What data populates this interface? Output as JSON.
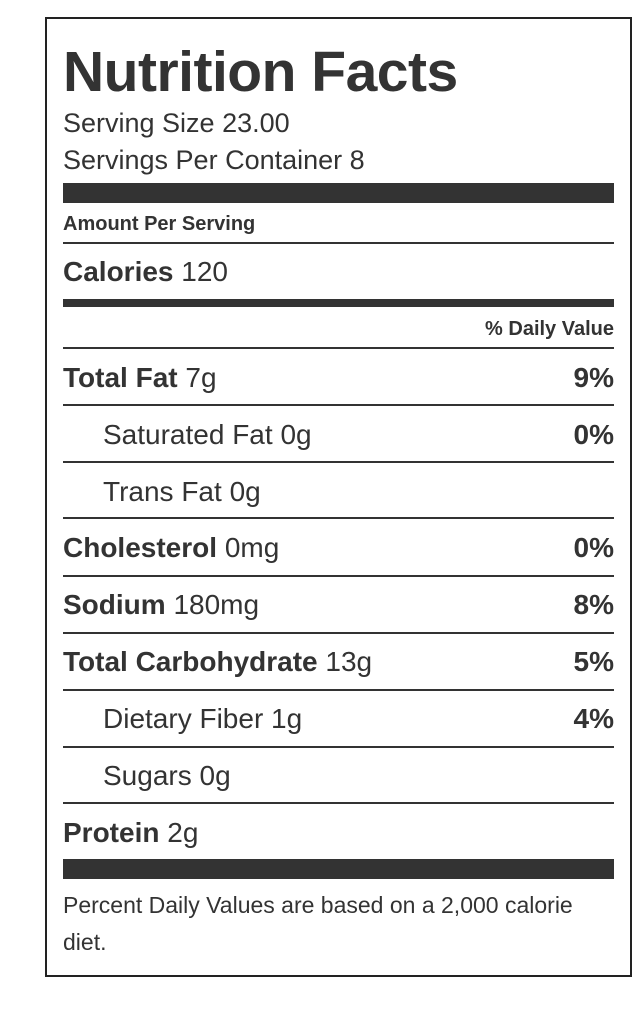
{
  "label": {
    "title": "Nutrition Facts",
    "serving_size": "Serving Size 23.00",
    "servings_per_container": "Servings Per Container 8",
    "amount_per_serving": "Amount Per Serving",
    "calories_label": "Calories",
    "calories_value": "120",
    "daily_value_header": "% Daily Value",
    "nutrients": [
      {
        "name": "Total Fat",
        "amount": "7g",
        "dv": "9%"
      },
      {
        "name": "Saturated Fat",
        "amount": "0g",
        "dv": "0%"
      },
      {
        "name": "Trans Fat",
        "amount": "0g",
        "dv": ""
      },
      {
        "name": "Cholesterol",
        "amount": "0mg",
        "dv": "0%"
      },
      {
        "name": "Sodium",
        "amount": "180mg",
        "dv": "8%"
      },
      {
        "name": "Total Carbohydrate",
        "amount": "13g",
        "dv": "5%"
      },
      {
        "name": "Dietary Fiber",
        "amount": "1g",
        "dv": "4%"
      },
      {
        "name": "Sugars",
        "amount": "0g",
        "dv": ""
      },
      {
        "name": "Protein",
        "amount": "2g",
        "dv": ""
      }
    ],
    "footnote": "Percent Daily Values are based on a 2,000 calorie diet."
  }
}
